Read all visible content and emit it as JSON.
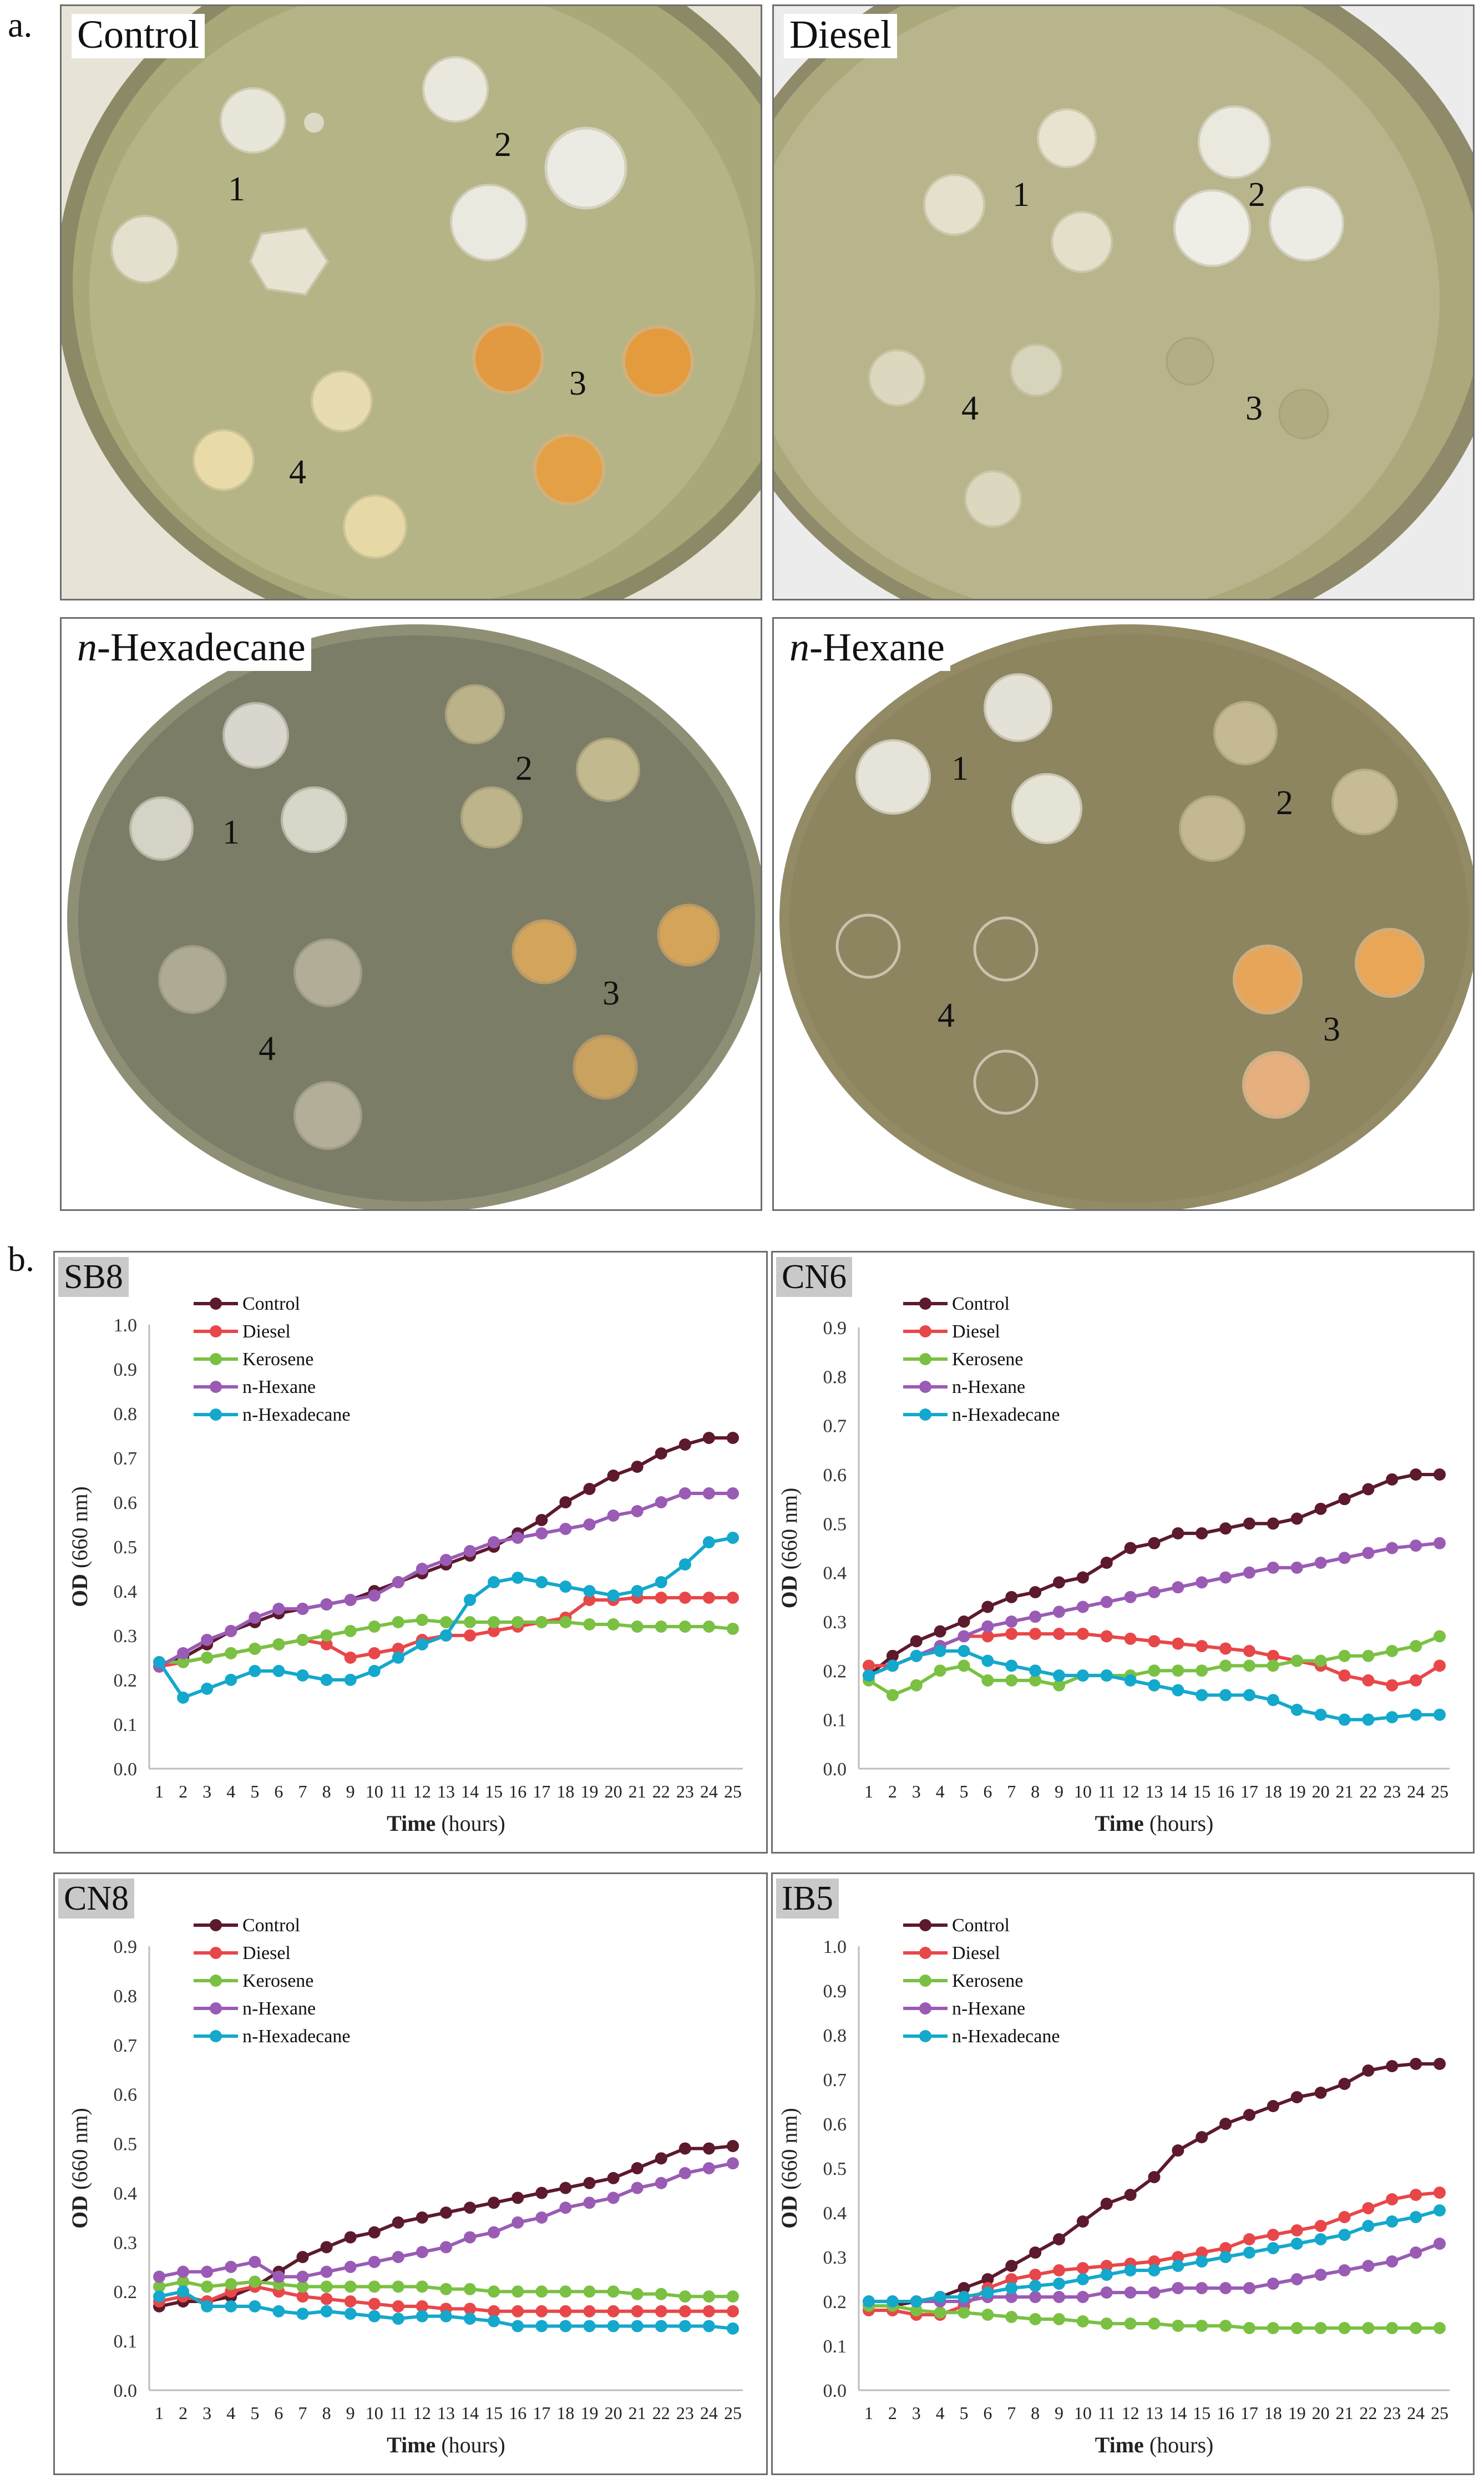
{
  "panel_a_label": "a.",
  "panel_b_label": "b.",
  "plates": [
    {
      "title_prefix": "",
      "title": "Control",
      "labels": [
        "1",
        "2",
        "3",
        "4"
      ]
    },
    {
      "title_prefix": "",
      "title": "Diesel",
      "labels": [
        "1",
        "2",
        "3",
        "4"
      ]
    },
    {
      "title_prefix": "n",
      "title": "-Hexadecane",
      "labels": [
        "1",
        "2",
        "3",
        "4"
      ]
    },
    {
      "title_prefix": "n",
      "title": "-Hexane",
      "labels": [
        "1",
        "2",
        "3",
        "4"
      ]
    }
  ],
  "colors": {
    "Control": "#5c1a2c",
    "Diesel": "#e8474a",
    "Kerosene": "#7ac143",
    "n-Hexane": "#9a5bb5",
    "n-Hexadecane": "#14a8cc"
  },
  "chart_data": [
    {
      "type": "line",
      "title": "SB8",
      "xlabel": "Time",
      "xlabel_unit": "(hours)",
      "ylabel": "OD",
      "ylabel_unit": "(660 nm)",
      "ylim": [
        0,
        1.0
      ],
      "yticks": [
        "0.0",
        "0.1",
        "0.2",
        "0.3",
        "0.4",
        "0.5",
        "0.6",
        "0.7",
        "0.8",
        "0.9",
        "1.0"
      ],
      "categories": [
        "1",
        "2",
        "3",
        "4",
        "5",
        "6",
        "7",
        "8",
        "9",
        "10",
        "11",
        "12",
        "13",
        "14",
        "15",
        "16",
        "17",
        "18",
        "19",
        "20",
        "21",
        "22",
        "23",
        "24",
        "25"
      ],
      "series": [
        {
          "name": "Control",
          "values": [
            0.23,
            0.25,
            0.28,
            0.31,
            0.33,
            0.35,
            0.36,
            0.37,
            0.38,
            0.4,
            0.42,
            0.44,
            0.46,
            0.48,
            0.5,
            0.53,
            0.56,
            0.6,
            0.63,
            0.66,
            0.68,
            0.71,
            0.73,
            0.745,
            0.745
          ]
        },
        {
          "name": "Diesel",
          "values": [
            0.23,
            0.24,
            0.25,
            0.26,
            0.27,
            0.28,
            0.29,
            0.28,
            0.25,
            0.26,
            0.27,
            0.29,
            0.3,
            0.3,
            0.31,
            0.32,
            0.33,
            0.34,
            0.38,
            0.38,
            0.385,
            0.385,
            0.385,
            0.385,
            0.385
          ]
        },
        {
          "name": "Kerosene",
          "values": [
            0.24,
            0.24,
            0.25,
            0.26,
            0.27,
            0.28,
            0.29,
            0.3,
            0.31,
            0.32,
            0.33,
            0.335,
            0.33,
            0.33,
            0.33,
            0.33,
            0.33,
            0.33,
            0.325,
            0.325,
            0.32,
            0.32,
            0.32,
            0.32,
            0.315
          ]
        },
        {
          "name": "n-Hexane",
          "values": [
            0.23,
            0.26,
            0.29,
            0.31,
            0.34,
            0.36,
            0.36,
            0.37,
            0.38,
            0.39,
            0.42,
            0.45,
            0.47,
            0.49,
            0.51,
            0.52,
            0.53,
            0.54,
            0.55,
            0.57,
            0.58,
            0.6,
            0.62,
            0.62,
            0.62
          ]
        },
        {
          "name": "n-Hexadecane",
          "values": [
            0.24,
            0.16,
            0.18,
            0.2,
            0.22,
            0.22,
            0.21,
            0.2,
            0.2,
            0.22,
            0.25,
            0.28,
            0.3,
            0.38,
            0.42,
            0.43,
            0.42,
            0.41,
            0.4,
            0.39,
            0.4,
            0.42,
            0.46,
            0.51,
            0.52
          ]
        }
      ]
    },
    {
      "type": "line",
      "title": "CN6",
      "xlabel": "Time",
      "xlabel_unit": "(hours)",
      "ylabel": "OD",
      "ylabel_unit": "(660 nm)",
      "ylim": [
        0,
        0.9
      ],
      "yticks": [
        "0.0",
        "0.1",
        "0.2",
        "0.3",
        "0.4",
        "0.5",
        "0.6",
        "0.7",
        "0.8",
        "0.9"
      ],
      "categories": [
        "1",
        "2",
        "3",
        "4",
        "5",
        "6",
        "7",
        "8",
        "9",
        "10",
        "11",
        "12",
        "13",
        "14",
        "15",
        "16",
        "17",
        "18",
        "19",
        "20",
        "21",
        "22",
        "23",
        "24",
        "25"
      ],
      "series": [
        {
          "name": "Control",
          "values": [
            0.19,
            0.23,
            0.26,
            0.28,
            0.3,
            0.33,
            0.35,
            0.36,
            0.38,
            0.39,
            0.42,
            0.45,
            0.46,
            0.48,
            0.48,
            0.49,
            0.5,
            0.5,
            0.51,
            0.53,
            0.55,
            0.57,
            0.59,
            0.6,
            0.6
          ]
        },
        {
          "name": "Diesel",
          "values": [
            0.21,
            0.21,
            0.23,
            0.25,
            0.27,
            0.27,
            0.275,
            0.275,
            0.275,
            0.275,
            0.27,
            0.265,
            0.26,
            0.255,
            0.25,
            0.245,
            0.24,
            0.23,
            0.22,
            0.21,
            0.19,
            0.18,
            0.17,
            0.18,
            0.21
          ]
        },
        {
          "name": "Kerosene",
          "values": [
            0.18,
            0.15,
            0.17,
            0.2,
            0.21,
            0.18,
            0.18,
            0.18,
            0.17,
            0.19,
            0.19,
            0.19,
            0.2,
            0.2,
            0.2,
            0.21,
            0.21,
            0.21,
            0.22,
            0.22,
            0.23,
            0.23,
            0.24,
            0.25,
            0.27
          ]
        },
        {
          "name": "n-Hexane",
          "values": [
            0.19,
            0.21,
            0.23,
            0.25,
            0.27,
            0.29,
            0.3,
            0.31,
            0.32,
            0.33,
            0.34,
            0.35,
            0.36,
            0.37,
            0.38,
            0.39,
            0.4,
            0.41,
            0.41,
            0.42,
            0.43,
            0.44,
            0.45,
            0.455,
            0.46
          ]
        },
        {
          "name": "n-Hexadecane",
          "values": [
            0.19,
            0.21,
            0.23,
            0.24,
            0.24,
            0.22,
            0.21,
            0.2,
            0.19,
            0.19,
            0.19,
            0.18,
            0.17,
            0.16,
            0.15,
            0.15,
            0.15,
            0.14,
            0.12,
            0.11,
            0.1,
            0.1,
            0.105,
            0.11,
            0.11
          ]
        }
      ]
    },
    {
      "type": "line",
      "title": "CN8",
      "xlabel": "Time",
      "xlabel_unit": "(hours)",
      "ylabel": "OD",
      "ylabel_unit": "(660 nm)",
      "ylim": [
        0,
        0.9
      ],
      "yticks": [
        "0.0",
        "0.1",
        "0.2",
        "0.3",
        "0.4",
        "0.5",
        "0.6",
        "0.7",
        "0.8",
        "0.9"
      ],
      "categories": [
        "1",
        "2",
        "3",
        "4",
        "5",
        "6",
        "7",
        "8",
        "9",
        "10",
        "11",
        "12",
        "13",
        "14",
        "15",
        "16",
        "17",
        "18",
        "19",
        "20",
        "21",
        "22",
        "23",
        "24",
        "25"
      ],
      "series": [
        {
          "name": "Control",
          "values": [
            0.17,
            0.18,
            0.18,
            0.19,
            0.21,
            0.24,
            0.27,
            0.29,
            0.31,
            0.32,
            0.34,
            0.35,
            0.36,
            0.37,
            0.38,
            0.39,
            0.4,
            0.41,
            0.42,
            0.43,
            0.45,
            0.47,
            0.49,
            0.49,
            0.495
          ]
        },
        {
          "name": "Diesel",
          "values": [
            0.18,
            0.19,
            0.18,
            0.2,
            0.21,
            0.2,
            0.19,
            0.185,
            0.18,
            0.175,
            0.17,
            0.17,
            0.165,
            0.165,
            0.16,
            0.16,
            0.16,
            0.16,
            0.16,
            0.16,
            0.16,
            0.16,
            0.16,
            0.16,
            0.16
          ]
        },
        {
          "name": "Kerosene",
          "values": [
            0.21,
            0.22,
            0.21,
            0.215,
            0.22,
            0.215,
            0.21,
            0.21,
            0.21,
            0.21,
            0.21,
            0.21,
            0.205,
            0.205,
            0.2,
            0.2,
            0.2,
            0.2,
            0.2,
            0.2,
            0.195,
            0.195,
            0.19,
            0.19,
            0.19
          ]
        },
        {
          "name": "n-Hexane",
          "values": [
            0.23,
            0.24,
            0.24,
            0.25,
            0.26,
            0.23,
            0.23,
            0.24,
            0.25,
            0.26,
            0.27,
            0.28,
            0.29,
            0.31,
            0.32,
            0.34,
            0.35,
            0.37,
            0.38,
            0.39,
            0.41,
            0.42,
            0.44,
            0.45,
            0.46
          ]
        },
        {
          "name": "n-Hexadecane",
          "values": [
            0.19,
            0.2,
            0.17,
            0.17,
            0.17,
            0.16,
            0.155,
            0.16,
            0.155,
            0.15,
            0.145,
            0.15,
            0.15,
            0.145,
            0.14,
            0.13,
            0.13,
            0.13,
            0.13,
            0.13,
            0.13,
            0.13,
            0.13,
            0.13,
            0.125
          ]
        }
      ]
    },
    {
      "type": "line",
      "title": "IB5",
      "xlabel": "Time",
      "xlabel_unit": "(hours)",
      "ylabel": "OD",
      "ylabel_unit": "(660 nm)",
      "ylim": [
        0,
        1.0
      ],
      "yticks": [
        "0.0",
        "0.1",
        "0.2",
        "0.3",
        "0.4",
        "0.5",
        "0.6",
        "0.7",
        "0.8",
        "0.9",
        "1.0"
      ],
      "categories": [
        "1",
        "2",
        "3",
        "4",
        "5",
        "6",
        "7",
        "8",
        "9",
        "10",
        "11",
        "12",
        "13",
        "14",
        "15",
        "16",
        "17",
        "18",
        "19",
        "20",
        "21",
        "22",
        "23",
        "24",
        "25"
      ],
      "series": [
        {
          "name": "Control",
          "values": [
            0.19,
            0.19,
            0.2,
            0.21,
            0.23,
            0.25,
            0.28,
            0.31,
            0.34,
            0.38,
            0.42,
            0.44,
            0.48,
            0.54,
            0.57,
            0.6,
            0.62,
            0.64,
            0.66,
            0.67,
            0.69,
            0.72,
            0.73,
            0.735,
            0.735
          ]
        },
        {
          "name": "Diesel",
          "values": [
            0.18,
            0.18,
            0.17,
            0.17,
            0.19,
            0.23,
            0.25,
            0.26,
            0.27,
            0.275,
            0.28,
            0.285,
            0.29,
            0.3,
            0.31,
            0.32,
            0.34,
            0.35,
            0.36,
            0.37,
            0.39,
            0.41,
            0.43,
            0.44,
            0.445
          ]
        },
        {
          "name": "Kerosene",
          "values": [
            0.19,
            0.19,
            0.18,
            0.175,
            0.175,
            0.17,
            0.165,
            0.16,
            0.16,
            0.155,
            0.15,
            0.15,
            0.15,
            0.145,
            0.145,
            0.145,
            0.14,
            0.14,
            0.14,
            0.14,
            0.14,
            0.14,
            0.14,
            0.14,
            0.14
          ]
        },
        {
          "name": "n-Hexane",
          "values": [
            0.2,
            0.2,
            0.2,
            0.2,
            0.2,
            0.21,
            0.21,
            0.21,
            0.21,
            0.21,
            0.22,
            0.22,
            0.22,
            0.23,
            0.23,
            0.23,
            0.23,
            0.24,
            0.25,
            0.26,
            0.27,
            0.28,
            0.29,
            0.31,
            0.33
          ]
        },
        {
          "name": "n-Hexadecane",
          "values": [
            0.2,
            0.2,
            0.2,
            0.21,
            0.21,
            0.22,
            0.23,
            0.235,
            0.24,
            0.25,
            0.26,
            0.27,
            0.27,
            0.28,
            0.29,
            0.3,
            0.31,
            0.32,
            0.33,
            0.34,
            0.35,
            0.37,
            0.38,
            0.39,
            0.405
          ]
        }
      ]
    }
  ]
}
